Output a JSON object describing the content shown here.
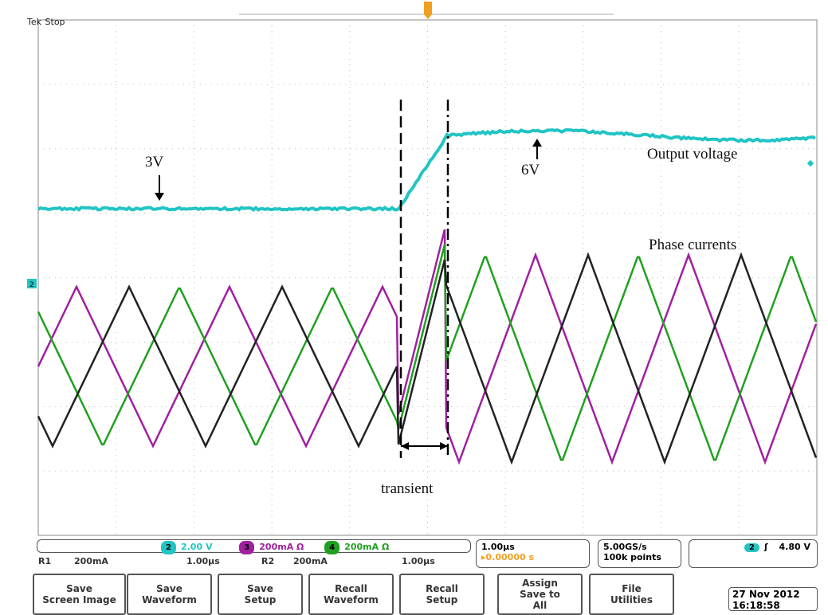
{
  "header": {
    "brand": "Tek",
    "status": "Stop"
  },
  "annotations": {
    "v_start": "3V",
    "v_end": "6V",
    "output_voltage": "Output voltage",
    "phase_currents": "Phase currents",
    "transient": "transient"
  },
  "markers": {
    "ch2": "2",
    "trigger": "T"
  },
  "channels": [
    {
      "id": "2",
      "scale": "2.00 V",
      "color": "#22c4c4"
    },
    {
      "id": "3",
      "scale": "200mA Ω",
      "color": "#a020a0"
    },
    {
      "id": "4",
      "scale": "200mA Ω",
      "color": "#20a020"
    }
  ],
  "refs": [
    {
      "id": "R1",
      "scale": "200mA",
      "time": "1.00µs"
    },
    {
      "id": "R2",
      "scale": "200mA",
      "time": "1.00µs"
    }
  ],
  "timebase": {
    "scale": "1.00µs",
    "delay": "▸0.00000 s"
  },
  "acq": {
    "rate": "5.00GS/s",
    "points": "100k points"
  },
  "trigger": {
    "channel": "2",
    "slope": "rising",
    "level": "4.80 V"
  },
  "buttons": [
    "Save\nScreen Image",
    "Save\nWaveform",
    "Save\nSetup",
    "Recall\nWaveform",
    "Recall\nSetup",
    "Assign\nSave to\nAll",
    "File\nUtilities"
  ],
  "datetime": {
    "date": "27 Nov 2012",
    "time": "16:18:58"
  }
}
